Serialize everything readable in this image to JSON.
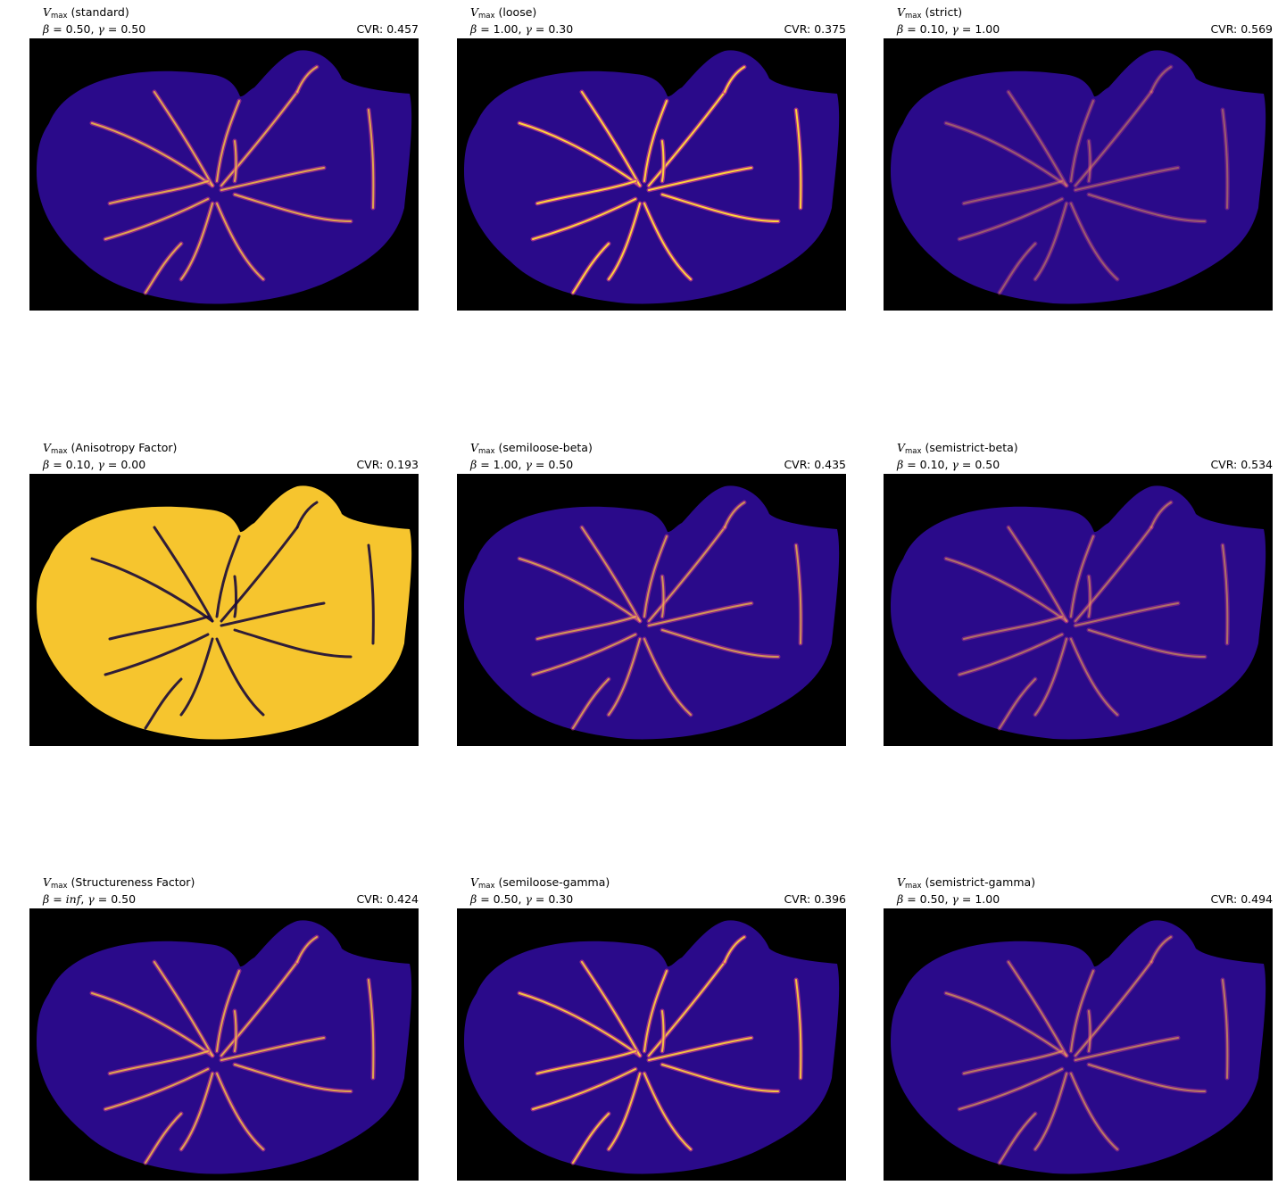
{
  "colors": {
    "background": "#000000",
    "tissue_base": "#2a0a8a",
    "vessel_mid": "#c23a8c",
    "vessel_high": "#ffd23a",
    "noise_high": "#f6c52e"
  },
  "panels": [
    {
      "method": "(standard)",
      "beta": "0.50",
      "gamma": "0.50",
      "cvr_text": "CVR: 0.457",
      "intensity": 0.75,
      "noise": false
    },
    {
      "method": "(loose)",
      "beta": "1.00",
      "gamma": "0.30",
      "cvr_text": "CVR: 0.375",
      "intensity": 1.0,
      "noise": false
    },
    {
      "method": "(strict)",
      "beta": "0.10",
      "gamma": "1.00",
      "cvr_text": "CVR: 0.569",
      "intensity": 0.35,
      "noise": false
    },
    {
      "method": "(Anisotropy Factor)",
      "beta": "0.10",
      "gamma": "0.00",
      "cvr_text": "CVR: 0.193",
      "intensity": 0.3,
      "noise": true
    },
    {
      "method": "(semiloose-beta)",
      "beta": "1.00",
      "gamma": "0.50",
      "cvr_text": "CVR: 0.435",
      "intensity": 0.65,
      "noise": false
    },
    {
      "method": "(semistrict-beta)",
      "beta": "0.10",
      "gamma": "0.50",
      "cvr_text": "CVR: 0.534",
      "intensity": 0.45,
      "noise": false
    },
    {
      "method": "(Structureness Factor)",
      "beta": "inf",
      "gamma": "0.50",
      "cvr_text": "CVR: 0.424",
      "intensity": 0.75,
      "noise": false
    },
    {
      "method": "(semiloose-gamma)",
      "beta": "0.50",
      "gamma": "0.30",
      "cvr_text": "CVR: 0.396",
      "intensity": 0.9,
      "noise": false
    },
    {
      "method": "(semistrict-gamma)",
      "beta": "0.50",
      "gamma": "1.00",
      "cvr_text": "CVR: 0.494",
      "intensity": 0.5,
      "noise": false
    }
  ],
  "labels": {
    "symbol_v": "V",
    "symbol_sub": "max",
    "beta_prefix": "β = ",
    "gamma_prefix": ", γ = "
  }
}
